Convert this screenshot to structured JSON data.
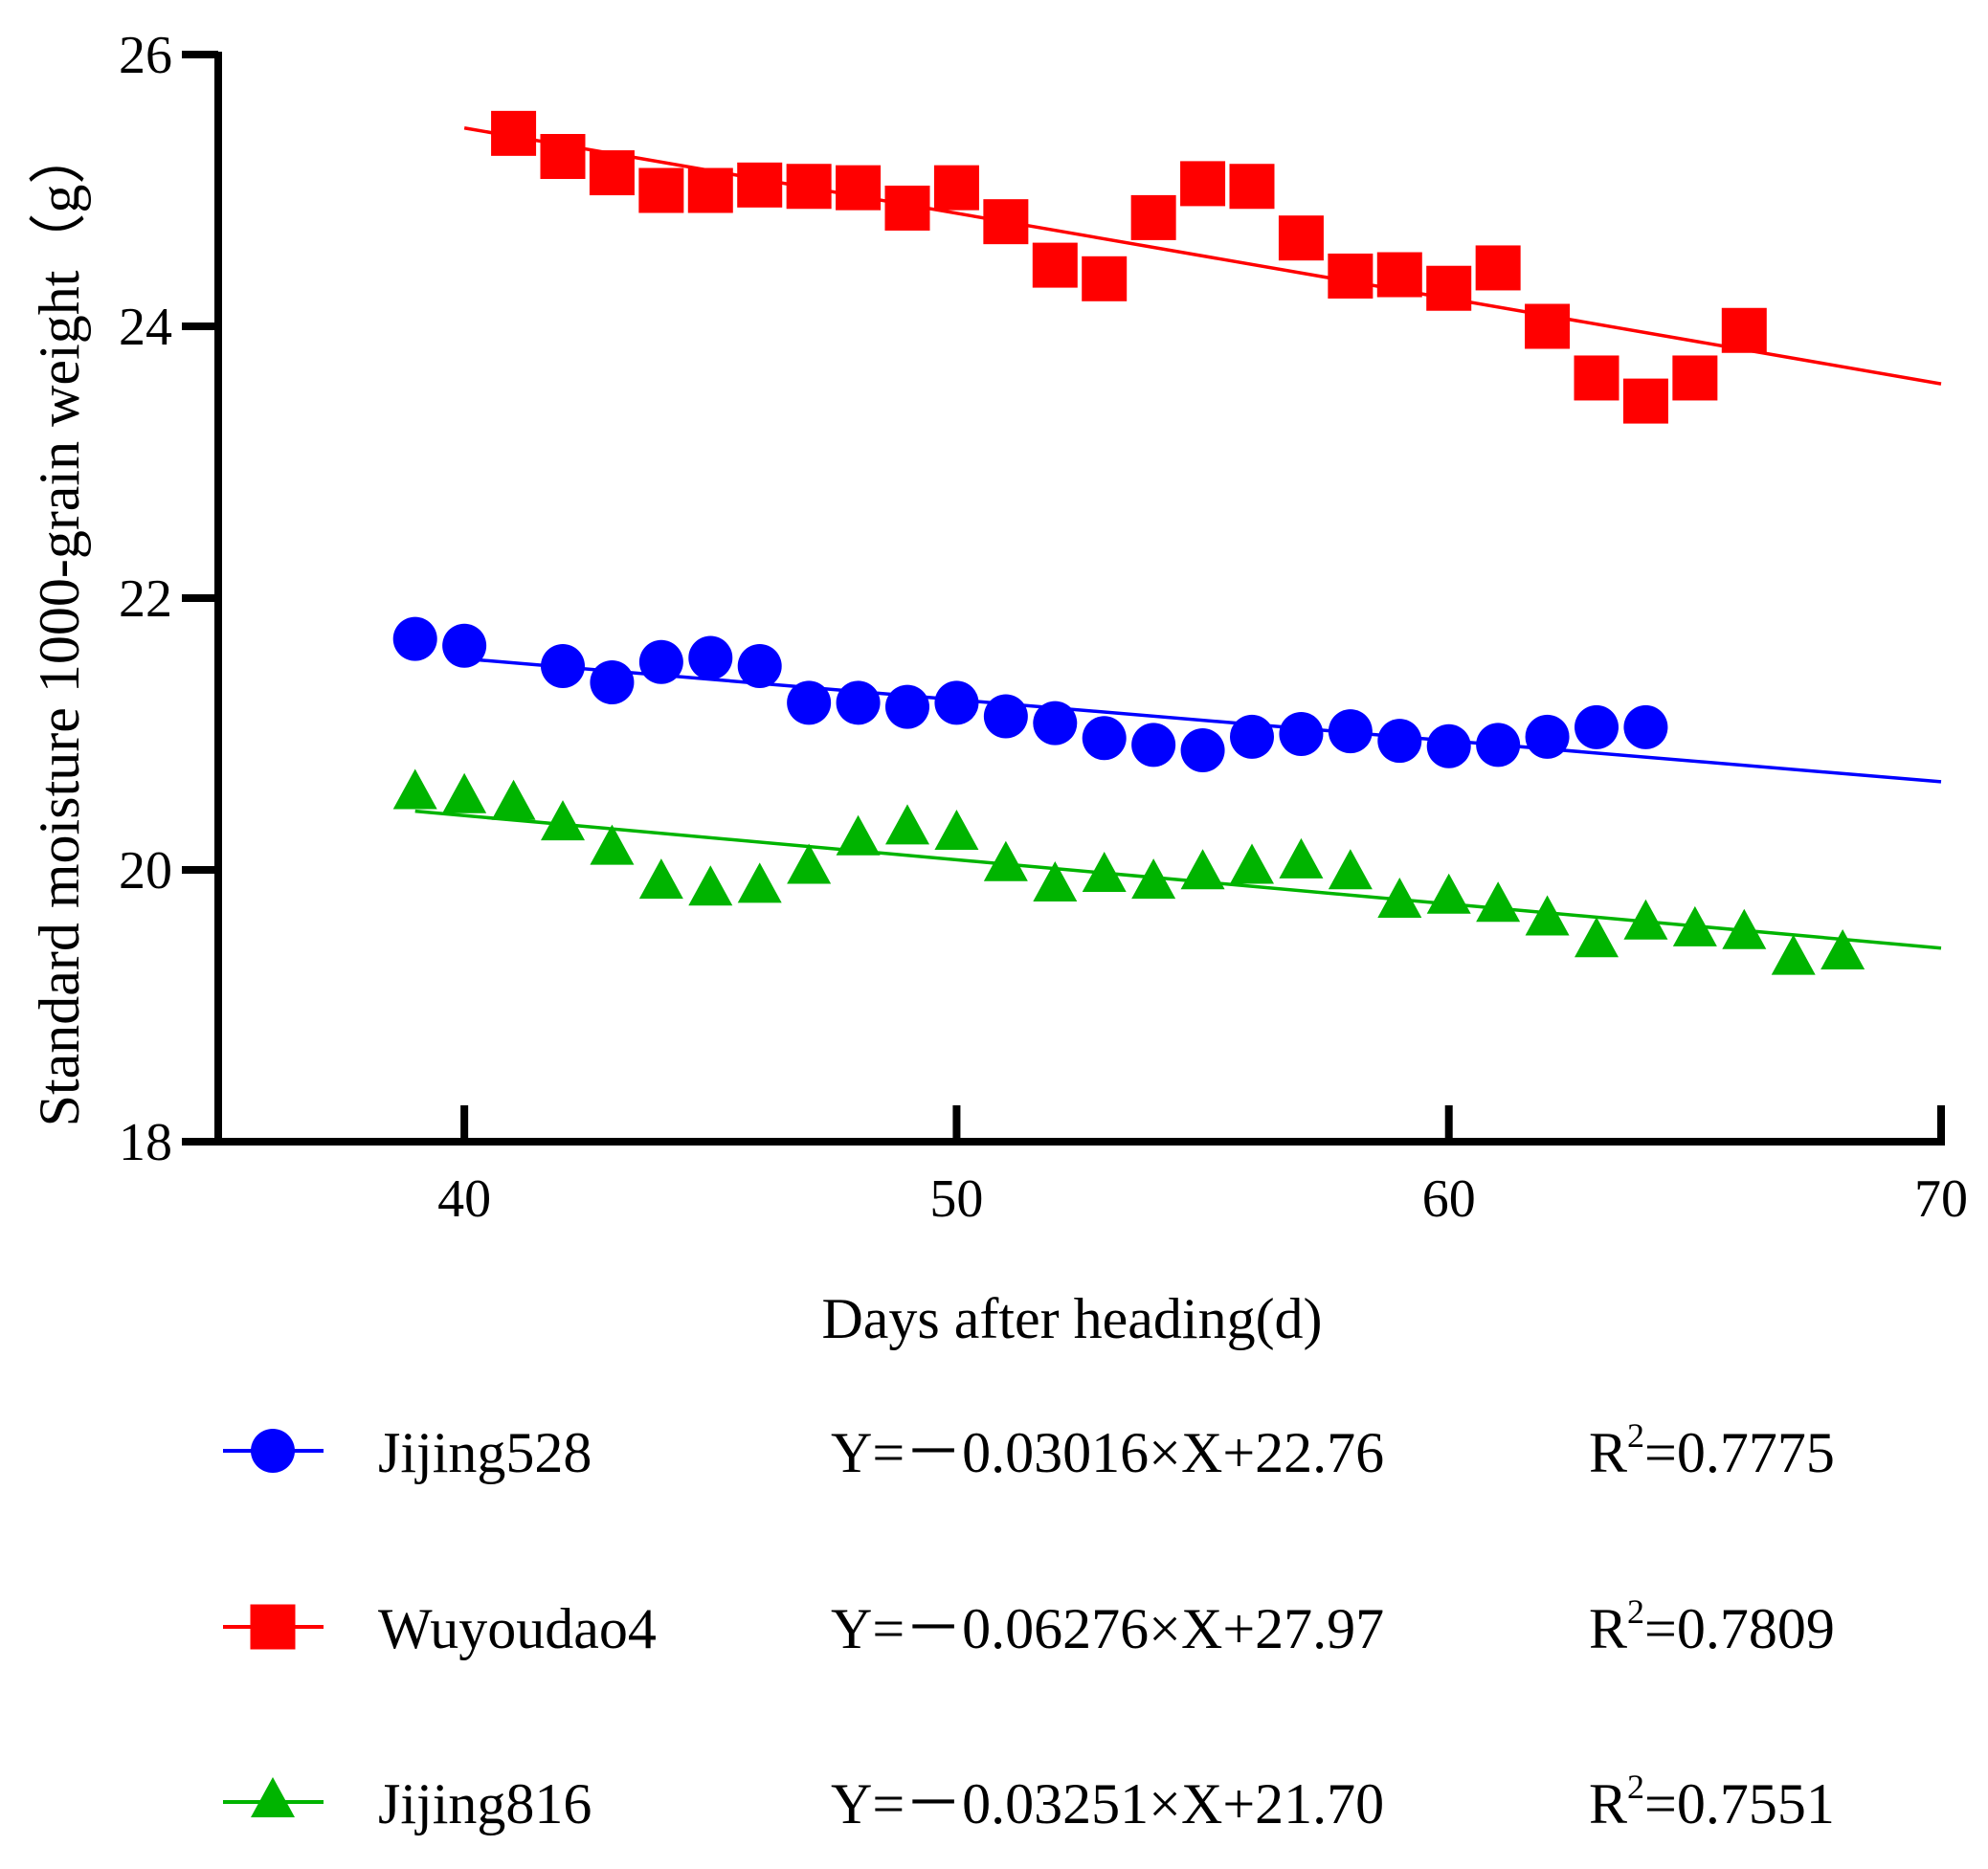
{
  "chart_data": {
    "type": "scatter",
    "title": "",
    "xlabel": "Days after heading(d)",
    "ylabel": "Standard moisture 1000-grain weight（g）",
    "xlim": [
      35,
      70
    ],
    "ylim": [
      18,
      26
    ],
    "xticks": [
      40,
      50,
      60,
      70
    ],
    "yticks": [
      18,
      20,
      22,
      24,
      26
    ],
    "grid": false,
    "legend_position": "bottom",
    "series": [
      {
        "name": "Jijing528",
        "color": "#0000ff",
        "marker": "circle",
        "equation": "Y=－0.03016×X+22.76",
        "r2_label": "R",
        "r2_sup": "2",
        "r2_value": "=0.7775",
        "slope": -0.03016,
        "intercept": 22.76,
        "fit_x_range": [
          40,
          70
        ],
        "x": [
          39,
          40,
          42,
          43,
          44,
          45,
          46,
          47,
          48,
          49,
          50,
          51,
          52,
          53,
          54,
          55,
          56,
          57,
          58,
          59,
          60,
          61,
          62,
          63,
          64
        ],
        "y": [
          21.7,
          21.65,
          21.5,
          21.38,
          21.53,
          21.56,
          21.5,
          21.23,
          21.23,
          21.2,
          21.23,
          21.13,
          21.08,
          20.97,
          20.92,
          20.88,
          20.98,
          21.0,
          21.02,
          20.95,
          20.91,
          20.92,
          20.98,
          21.05,
          21.05
        ]
      },
      {
        "name": "Wuyoudao4",
        "color": "#ff0000",
        "marker": "square",
        "equation": "Y=－0.06276×X+27.97",
        "r2_label": "R",
        "r2_sup": "2",
        "r2_value": "=0.7809",
        "slope": -0.06276,
        "intercept": 27.97,
        "fit_x_range": [
          40,
          70
        ],
        "x": [
          41,
          42,
          43,
          44,
          45,
          46,
          47,
          48,
          49,
          50,
          51,
          52,
          53,
          54,
          55,
          56,
          57,
          58,
          59,
          60,
          61,
          62,
          63,
          64,
          65,
          66
        ],
        "y": [
          25.42,
          25.25,
          25.13,
          25.0,
          25.0,
          25.04,
          25.03,
          25.02,
          24.87,
          25.02,
          24.77,
          24.45,
          24.35,
          24.8,
          25.05,
          25.03,
          24.65,
          24.37,
          24.38,
          24.28,
          24.43,
          24.0,
          23.62,
          23.45,
          23.62,
          23.97
        ]
      },
      {
        "name": "Jijing816",
        "color": "#00b400",
        "marker": "triangle",
        "equation": "Y=－0.03251×X+21.70",
        "r2_label": "R",
        "r2_sup": "2",
        "r2_value": "=0.7551",
        "slope": -0.03251,
        "intercept": 21.7,
        "fit_x_range": [
          39,
          70
        ],
        "x": [
          39,
          40,
          41,
          42,
          43,
          44,
          45,
          46,
          47,
          48,
          49,
          50,
          51,
          52,
          53,
          54,
          55,
          56,
          57,
          58,
          59,
          60,
          61,
          62,
          63,
          64,
          65,
          66,
          67,
          68
        ],
        "y": [
          20.56,
          20.53,
          20.48,
          20.33,
          20.15,
          19.9,
          19.85,
          19.87,
          20.01,
          20.22,
          20.3,
          20.26,
          20.03,
          19.88,
          19.95,
          19.9,
          19.97,
          20.01,
          20.05,
          19.97,
          19.76,
          19.79,
          19.73,
          19.63,
          19.47,
          19.6,
          19.55,
          19.53,
          19.34,
          19.38
        ]
      }
    ]
  }
}
